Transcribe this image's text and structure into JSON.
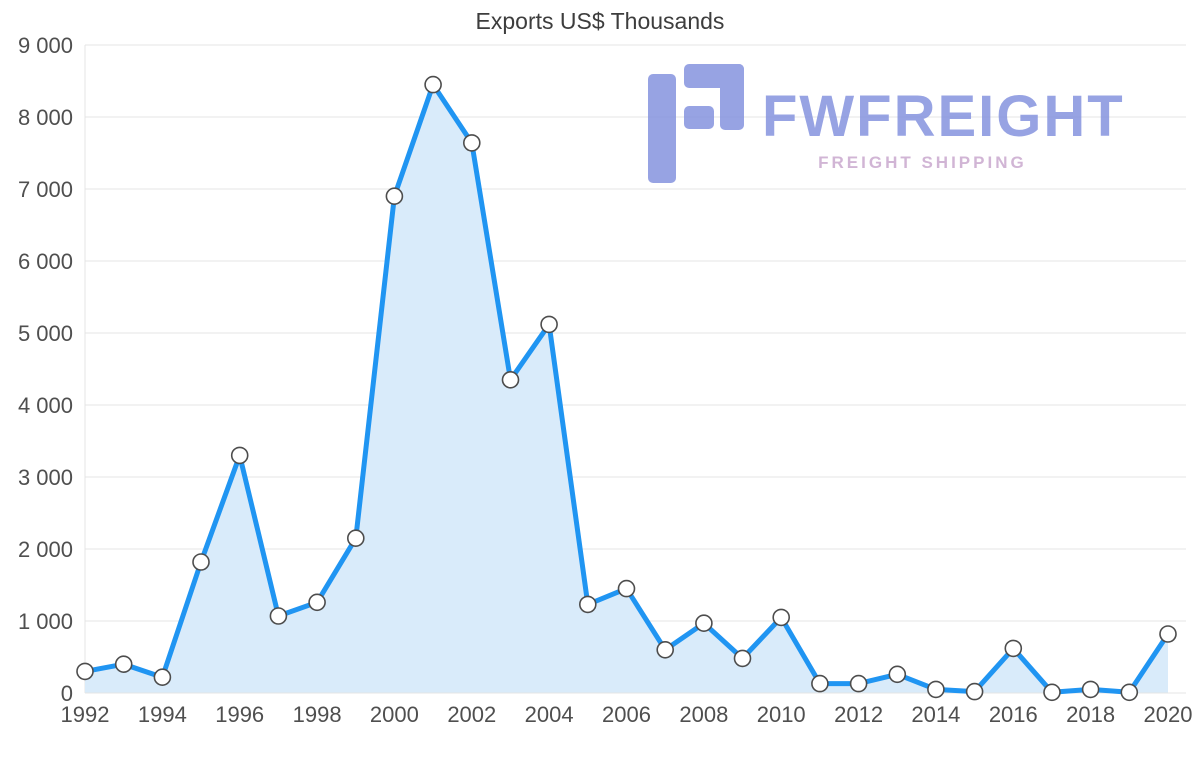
{
  "chart_data": {
    "type": "area",
    "title": "Exports US$ Thousands",
    "xlabel": "",
    "ylabel": "",
    "x": [
      1992,
      1993,
      1994,
      1995,
      1996,
      1997,
      1998,
      1999,
      2000,
      2001,
      2002,
      2003,
      2004,
      2005,
      2006,
      2007,
      2008,
      2009,
      2010,
      2011,
      2012,
      2013,
      2014,
      2015,
      2016,
      2017,
      2018,
      2019,
      2020
    ],
    "values": [
      300,
      400,
      220,
      1820,
      3300,
      1070,
      1260,
      2150,
      6900,
      8450,
      7640,
      4350,
      5120,
      1230,
      1450,
      600,
      970,
      480,
      1050,
      130,
      130,
      260,
      50,
      20,
      620,
      10,
      50,
      10,
      820
    ],
    "ylim": [
      0,
      9000
    ],
    "grid": true,
    "yticks": [
      {
        "value": 0,
        "label": "0"
      },
      {
        "value": 1000,
        "label": "1 000"
      },
      {
        "value": 2000,
        "label": "2 000"
      },
      {
        "value": 3000,
        "label": "3 000"
      },
      {
        "value": 4000,
        "label": "4 000"
      },
      {
        "value": 5000,
        "label": "5 000"
      },
      {
        "value": 6000,
        "label": "6 000"
      },
      {
        "value": 7000,
        "label": "7 000"
      },
      {
        "value": 8000,
        "label": "8 000"
      },
      {
        "value": 9000,
        "label": "9 000"
      }
    ],
    "xticks": [
      {
        "value": 1992,
        "label": "1992"
      },
      {
        "value": 1994,
        "label": "1994"
      },
      {
        "value": 1996,
        "label": "1996"
      },
      {
        "value": 1998,
        "label": "1998"
      },
      {
        "value": 2000,
        "label": "2000"
      },
      {
        "value": 2002,
        "label": "2002"
      },
      {
        "value": 2004,
        "label": "2004"
      },
      {
        "value": 2006,
        "label": "2006"
      },
      {
        "value": 2008,
        "label": "2008"
      },
      {
        "value": 2010,
        "label": "2010"
      },
      {
        "value": 2012,
        "label": "2012"
      },
      {
        "value": 2014,
        "label": "2014"
      },
      {
        "value": 2016,
        "label": "2016"
      },
      {
        "value": 2018,
        "label": "2018"
      },
      {
        "value": 2020,
        "label": "2020"
      }
    ],
    "line_color": "#2095F2",
    "fill_color": "#D9EBFA",
    "marker_fill": "#FFFFFF",
    "marker_stroke": "#4D4D4D",
    "grid_color": "#E4E4E4",
    "label_color": "#4F4F4F",
    "title_color": "#3D3D3D"
  },
  "watermark": {
    "title": "FWFREIGHT",
    "subtitle": "FREIGHT SHIPPING",
    "logo_color": "#8593DF",
    "title_color": "#8593DF",
    "subtitle_color": "#C9A9CE"
  }
}
